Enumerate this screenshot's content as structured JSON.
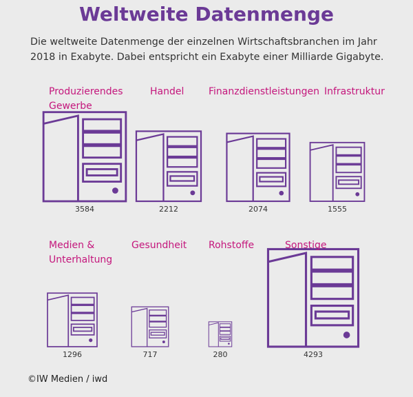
{
  "chart_data": {
    "type": "icon",
    "title": "Weltweite Datenmenge",
    "subtitle": "Die weltweite Datenmenge der einzelnen Wirtschaftsbranchen im Jahr 2018 in Exabyte. Dabei entspricht ein Exabyte einer Milliarde Gigabyte.",
    "categories": [
      "Produzierendes Gewerbe",
      "Handel",
      "Finanzdienstleistungen",
      "Infrastruktur",
      "Medien & Unterhaltung",
      "Gesundheit",
      "Rohstoffe",
      "Sonstige"
    ],
    "values": [
      3584,
      2212,
      2074,
      1555,
      1296,
      717,
      280,
      4293
    ],
    "color": "#6b3a96",
    "label_color": "#c4167c",
    "source": "©IW Medien / iwd"
  }
}
